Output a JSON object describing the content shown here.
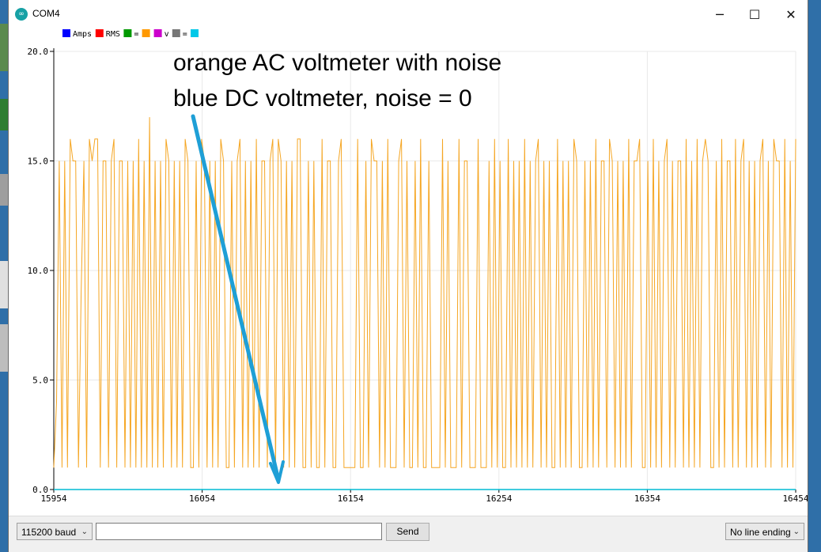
{
  "window": {
    "title": "COM4",
    "icon": "arduino-icon",
    "controls": {
      "minimize": "─",
      "maximize": "☐",
      "close": "✕"
    }
  },
  "legend": [
    {
      "label": "Amps",
      "color": "#0000ff"
    },
    {
      "label": "RMS",
      "color": "#ff0000"
    },
    {
      "label": "=",
      "color": "#009900"
    },
    {
      "label": "",
      "color": "#ff9900"
    },
    {
      "label": "v",
      "color": "#cc00cc"
    },
    {
      "label": "=",
      "color": "#777777"
    },
    {
      "label": "",
      "color": "#00c8e8"
    }
  ],
  "annotation": {
    "line1": "orange AC voltmeter with noise",
    "line2": "blue DC voltmeter, noise = 0",
    "arrow_color": "#1e9fd6"
  },
  "chart_data": {
    "type": "line",
    "ylim": [
      0,
      20
    ],
    "xlim": [
      15954,
      16454
    ],
    "y_ticks": [
      "0.0",
      "5.0",
      "10.0",
      "15.0",
      "20.0"
    ],
    "x_ticks": [
      "15954",
      "16054",
      "16154",
      "16254",
      "16354",
      "16454"
    ],
    "grid": true,
    "series": [
      {
        "color": "#f5a623",
        "values": [
          1,
          4,
          15,
          1,
          15,
          1,
          16,
          15,
          15,
          1,
          9,
          15,
          1,
          16,
          15,
          16,
          16,
          1,
          15,
          15,
          1,
          15,
          16,
          1,
          15,
          15,
          1,
          15,
          1,
          15,
          1,
          16,
          1,
          15,
          1,
          17,
          1,
          15,
          1,
          15,
          1,
          16,
          15,
          1,
          15,
          1,
          15,
          1,
          16,
          15,
          1,
          1,
          15,
          1,
          16,
          15,
          1,
          15,
          1,
          15,
          1,
          16,
          15,
          1,
          1,
          15,
          1,
          15,
          16,
          1,
          15,
          1,
          15,
          1,
          16,
          1,
          15,
          15,
          1,
          15,
          16,
          1,
          16,
          15,
          1,
          15,
          1,
          15,
          1,
          16,
          16,
          1,
          1,
          15,
          1,
          15,
          1,
          1,
          16,
          1,
          15,
          15,
          1,
          1,
          15,
          16,
          1,
          1,
          1,
          1,
          1,
          16,
          1,
          1,
          15,
          1,
          16,
          15,
          15,
          1,
          15,
          1,
          16,
          1,
          1,
          1,
          15,
          16,
          1,
          15,
          1,
          1,
          15,
          1,
          16,
          1,
          1,
          15,
          1,
          1,
          1,
          1,
          16,
          1,
          15,
          1,
          1,
          1,
          16,
          1,
          15,
          15,
          1,
          1,
          1,
          16,
          1,
          1,
          1,
          15,
          1,
          16,
          1,
          15,
          1,
          1,
          16,
          1,
          15,
          1,
          15,
          1,
          16,
          1,
          15,
          1,
          15,
          16,
          1,
          15,
          1,
          15,
          1,
          1,
          16,
          1,
          15,
          1,
          15,
          1,
          16,
          15,
          1,
          1,
          15,
          1,
          15,
          1,
          16,
          1,
          15,
          15,
          1,
          16,
          15,
          1,
          15,
          1,
          15,
          1,
          16,
          1,
          15,
          15,
          16,
          1,
          1,
          15,
          1,
          16,
          1,
          15,
          1,
          15,
          16,
          1,
          15,
          1,
          15,
          15,
          1,
          16,
          1,
          15,
          1,
          16,
          1,
          15,
          16,
          15,
          1,
          1,
          15,
          1,
          16,
          1,
          15,
          15,
          1,
          16,
          1,
          15,
          16,
          1,
          15,
          1,
          15,
          1,
          15,
          16,
          1,
          15,
          1,
          16,
          15,
          15,
          1,
          16,
          1,
          15,
          1,
          16
        ]
      },
      {
        "color": "#00bcd4",
        "values": [
          0,
          0
        ]
      }
    ]
  },
  "bottom": {
    "baud": "115200 baud",
    "input_value": "",
    "send": "Send",
    "line_ending": "No line ending"
  }
}
